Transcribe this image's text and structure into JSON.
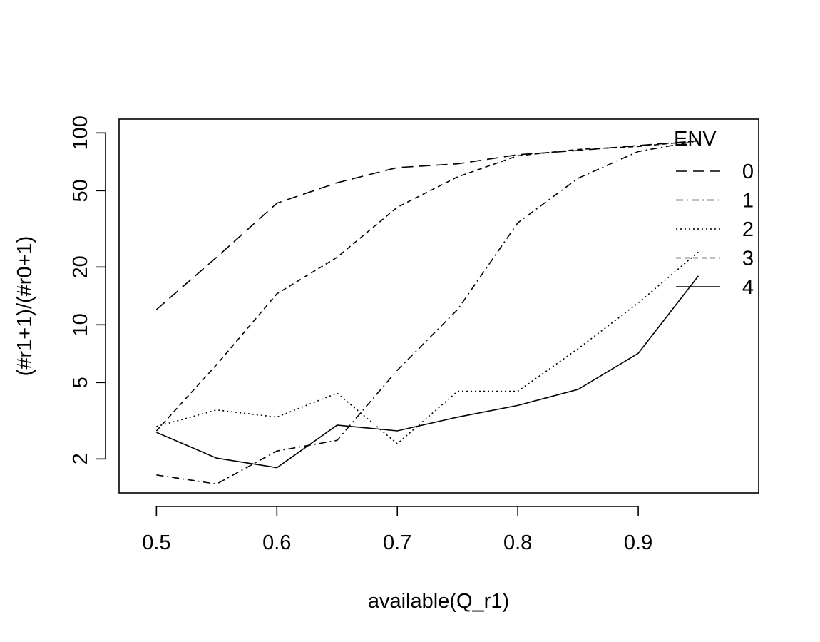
{
  "chart_data": {
    "type": "line",
    "xlabel": "available(Q_r1)",
    "ylabel": "(#r1+1)/(#r0+1)",
    "y_scale": "log",
    "xlim": [
      0.469,
      1.0
    ],
    "ylim": [
      1.33,
      118
    ],
    "x_ticks": [
      0.5,
      0.6,
      0.7,
      0.8,
      0.9
    ],
    "x_tick_labels": [
      "0.5",
      "0.6",
      "0.7",
      "0.8",
      "0.9"
    ],
    "y_ticks": [
      2,
      5,
      10,
      20,
      50,
      100
    ],
    "y_tick_labels": [
      "2",
      "5",
      "10",
      "20",
      "50",
      "100"
    ],
    "grid": false,
    "legend": {
      "title": "ENV",
      "position": "top-right"
    },
    "x": [
      0.5,
      0.55,
      0.6,
      0.65,
      0.7,
      0.75,
      0.8,
      0.85,
      0.9,
      0.95
    ],
    "series": [
      {
        "name": "0",
        "dash": "16,8",
        "values": [
          12,
          22.5,
          43,
          55,
          66,
          69,
          77,
          81,
          86,
          91
        ]
      },
      {
        "name": "1",
        "dash": "10,5,2,5",
        "values": [
          1.65,
          1.48,
          2.2,
          2.5,
          5.8,
          12,
          34,
          58,
          80,
          91
        ]
      },
      {
        "name": "2",
        "dash": "2,4",
        "values": [
          2.95,
          3.6,
          3.3,
          4.4,
          2.4,
          4.5,
          4.5,
          7.5,
          13,
          24
        ]
      },
      {
        "name": "3",
        "dash": "7,5",
        "values": [
          2.8,
          6.2,
          14.5,
          22.5,
          41,
          59,
          76,
          82,
          85,
          91
        ]
      },
      {
        "name": "4",
        "dash": "",
        "values": [
          2.75,
          2.02,
          1.8,
          3.0,
          2.8,
          3.3,
          3.8,
          4.6,
          7.1,
          18
        ]
      }
    ]
  }
}
